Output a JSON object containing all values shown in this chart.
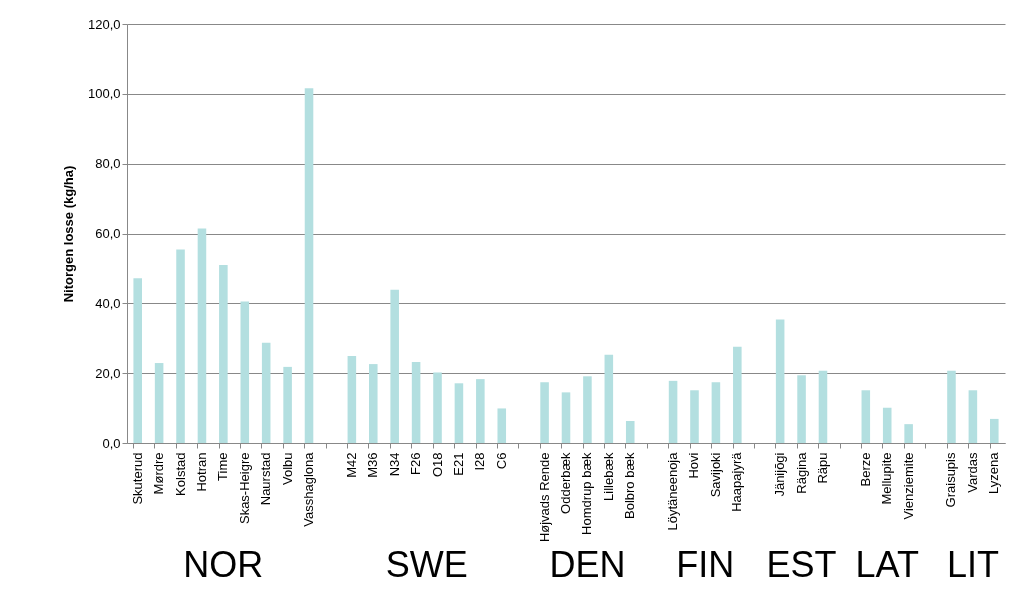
{
  "chart_data": {
    "type": "bar",
    "ylabel": "Nitorgen losse (kg/ha)",
    "categories": [
      "Skuterud",
      "Mørdre",
      "Kolstad",
      "Hotran",
      "Time",
      "Skas-Heigre",
      "Naurstad",
      "Volbu",
      "Vasshaglona",
      null,
      "M42",
      "M36",
      "N34",
      "F26",
      "O18",
      "E21",
      "I28",
      "C6",
      null,
      "Højvads Rende",
      "Odderbæk",
      "Homdrup bæk",
      "Lillebæk",
      "Bolbro bæk",
      null,
      "Löytäneenoja",
      "Hovi",
      "Savijoki",
      "Haapajyrä",
      null,
      "Jänijõgi",
      "Rägina",
      "Räpu",
      null,
      "Berze",
      "Mellupite",
      "Vienziemite",
      null,
      "Graisupis",
      "Vardas",
      "Lyzena"
    ],
    "values": [
      47.2,
      22.9,
      55.4,
      61.4,
      51.0,
      40.5,
      28.7,
      21.8,
      101.6,
      null,
      24.9,
      22.6,
      43.9,
      23.2,
      20.2,
      17.1,
      18.3,
      9.9,
      null,
      17.4,
      14.5,
      19.1,
      25.3,
      6.3,
      null,
      17.8,
      15.1,
      17.4,
      27.6,
      null,
      35.4,
      19.4,
      20.7,
      null,
      15.1,
      10.1,
      5.4,
      null,
      20.7,
      15.1,
      6.9
    ],
    "color": "#b3dfe0",
    "ylim": [
      0,
      120
    ],
    "yticks": [
      {
        "value": 0,
        "label": "0,0"
      },
      {
        "value": 20,
        "label": "20,0"
      },
      {
        "value": 40,
        "label": "40,0"
      },
      {
        "value": 60,
        "label": "60,0"
      },
      {
        "value": 80,
        "label": "80,0"
      },
      {
        "value": 100,
        "label": "100,0"
      },
      {
        "value": 120,
        "label": "120,0"
      }
    ],
    "grid": "y",
    "annotations": [
      "NOR",
      "SWE",
      "DEN",
      "FIN",
      "EST",
      "LAT",
      "LIT"
    ]
  }
}
